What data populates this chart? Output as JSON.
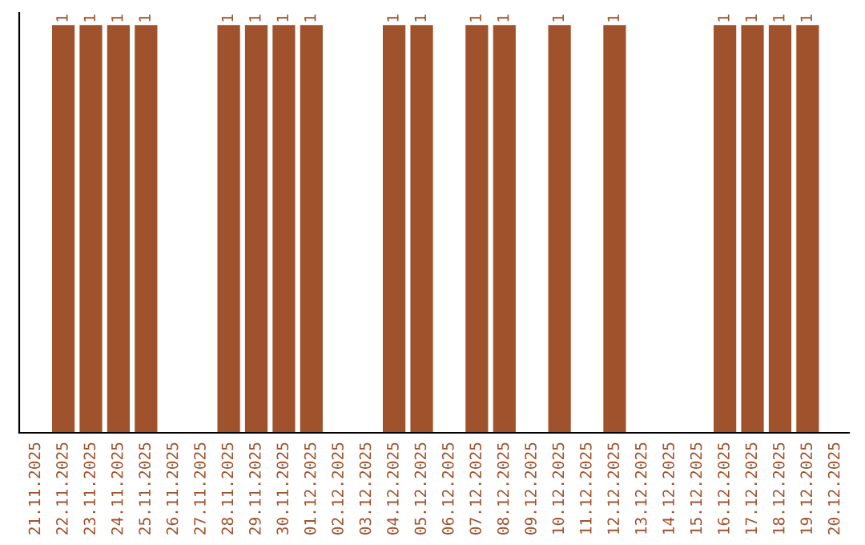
{
  "chart_data": {
    "type": "bar",
    "categories": [
      "21.11.2025",
      "22.11.2025",
      "23.11.2025",
      "24.11.2025",
      "25.11.2025",
      "26.11.2025",
      "27.11.2025",
      "28.11.2025",
      "29.11.2025",
      "30.11.2025",
      "01.12.2025",
      "02.12.2025",
      "03.12.2025",
      "04.12.2025",
      "05.12.2025",
      "06.12.2025",
      "07.12.2025",
      "08.12.2025",
      "09.12.2025",
      "10.12.2025",
      "11.12.2025",
      "12.12.2025",
      "13.12.2025",
      "14.12.2025",
      "15.12.2025",
      "16.12.2025",
      "17.12.2025",
      "18.12.2025",
      "19.12.2025",
      "20.12.2025"
    ],
    "values": [
      0,
      1,
      1,
      1,
      1,
      0,
      0,
      1,
      1,
      1,
      1,
      0,
      0,
      1,
      1,
      0,
      1,
      1,
      0,
      1,
      0,
      1,
      0,
      0,
      0,
      1,
      1,
      1,
      1,
      0
    ],
    "value_labels": [
      null,
      "1",
      "1",
      "1",
      "1",
      null,
      null,
      "1",
      "1",
      "1",
      "1",
      null,
      null,
      "1",
      "1",
      null,
      "1",
      "1",
      null,
      "1",
      null,
      "1",
      null,
      null,
      null,
      "1",
      "1",
      "1",
      "1",
      null
    ],
    "color": "#a0522d",
    "grid": false,
    "legend": false
  }
}
